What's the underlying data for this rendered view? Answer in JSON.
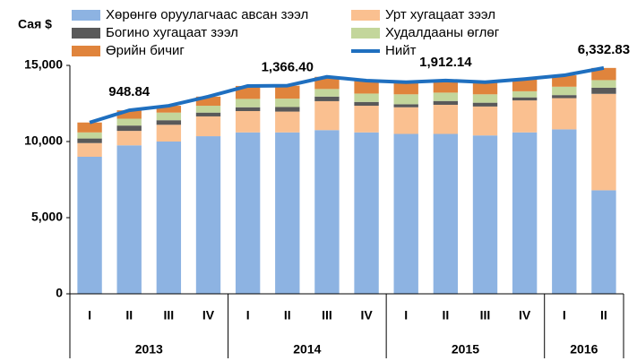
{
  "chart_data": {
    "type": "bar",
    "stacked": true,
    "y_axis_label": "Сая $",
    "groups": [
      {
        "name": "2013",
        "categories": [
          "I",
          "II",
          "III",
          "IV"
        ]
      },
      {
        "name": "2014",
        "categories": [
          "I",
          "II",
          "III",
          "IV"
        ]
      },
      {
        "name": "2015",
        "categories": [
          "I",
          "II",
          "III",
          "IV"
        ]
      },
      {
        "name": "2016",
        "categories": [
          "I",
          "II"
        ]
      }
    ],
    "ylim": [
      0,
      15000
    ],
    "yticks": [
      0,
      {
        "value": 5000,
        "label": "5,000"
      },
      {
        "value": 10000,
        "label": "10,000"
      },
      {
        "value": 15000,
        "label": "15,000"
      }
    ],
    "series": [
      {
        "name": "Хөрөнгө оруулагчаас авсан зээл",
        "type": "bar",
        "color": "#8db3e2",
        "values": [
          9000,
          9750,
          10000,
          10350,
          10600,
          10600,
          10750,
          10600,
          10500,
          10500,
          10400,
          10600,
          10800,
          6800
        ]
      },
      {
        "name": "Урт хугацаат зээл",
        "type": "bar",
        "color": "#fac090",
        "values": [
          900,
          948.84,
          1100,
          1300,
          1400,
          1366.4,
          1900,
          1750,
          1750,
          1912.14,
          1900,
          2100,
          2050,
          6332.83
        ],
        "value_labels": [
          null,
          "948.84",
          null,
          null,
          null,
          "1,366.40",
          null,
          null,
          null,
          "1,912.14",
          null,
          null,
          null,
          "6,332.83"
        ]
      },
      {
        "name": "Богино хугацаат зээл",
        "type": "bar",
        "color": "#595959",
        "values": [
          300,
          350,
          300,
          250,
          250,
          300,
          300,
          250,
          200,
          250,
          250,
          200,
          200,
          400
        ]
      },
      {
        "name": "Худалдааны өглөг",
        "type": "bar",
        "color": "#c3d69b",
        "values": [
          400,
          450,
          500,
          450,
          550,
          550,
          500,
          550,
          650,
          550,
          550,
          400,
          550,
          500
        ]
      },
      {
        "name": "Өрийн бичиг",
        "type": "bar",
        "color": "#e0843c",
        "values": [
          650,
          550,
          450,
          600,
          850,
          850,
          800,
          850,
          800,
          800,
          800,
          800,
          750,
          800
        ]
      },
      {
        "name": "Нийт",
        "type": "line",
        "color": "#1f6fbf",
        "values": [
          11250,
          12050,
          12350,
          12950,
          13650,
          13670,
          14250,
          14000,
          13900,
          14010,
          13900,
          14100,
          14350,
          14830
        ]
      }
    ]
  }
}
